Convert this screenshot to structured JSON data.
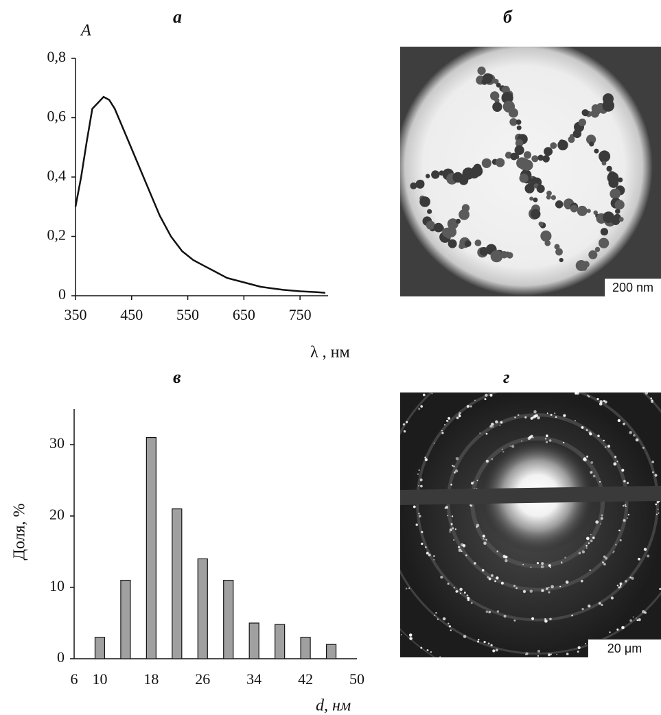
{
  "figure": {
    "panels": {
      "a": {
        "letter": "а"
      },
      "b": {
        "letter": "б",
        "scale_bar": "200 nm"
      },
      "c": {
        "letter": "в"
      },
      "d": {
        "letter": "г",
        "scale_bar": "20 μm"
      }
    }
  },
  "chart_data": [
    {
      "type": "line",
      "panel": "а",
      "xlabel": "λ , нм",
      "ylabel": "A",
      "xlim": [
        350,
        800
      ],
      "ylim": [
        0,
        0.8
      ],
      "x_ticks": [
        "350",
        "450",
        "550",
        "650",
        "750"
      ],
      "y_ticks": [
        "0",
        "0,2",
        "0,4",
        "0,6",
        "0,8"
      ],
      "grid": false,
      "series": [
        {
          "x": [
            350,
            360,
            370,
            380,
            390,
            400,
            410,
            420,
            440,
            460,
            480,
            500,
            520,
            540,
            560,
            580,
            600,
            620,
            650,
            680,
            700,
            720,
            750,
            780,
            795
          ],
          "y": [
            0.3,
            0.4,
            0.52,
            0.63,
            0.65,
            0.67,
            0.66,
            0.63,
            0.54,
            0.45,
            0.36,
            0.27,
            0.2,
            0.15,
            0.12,
            0.1,
            0.08,
            0.06,
            0.045,
            0.03,
            0.025,
            0.02,
            0.015,
            0.012,
            0.01
          ]
        }
      ]
    },
    {
      "type": "bar",
      "panel": "в",
      "xlabel": "d, нм",
      "ylabel": "Доля, %",
      "xlim": [
        6,
        50
      ],
      "ylim": [
        0,
        35
      ],
      "x_ticks": [
        "6",
        "10",
        "18",
        "26",
        "34",
        "42",
        "50"
      ],
      "y_ticks": [
        "0",
        "10",
        "20",
        "30"
      ],
      "grid": false,
      "bar_color": "#a0a0a0",
      "categories": [
        10,
        14,
        18,
        22,
        26,
        30,
        34,
        38,
        42,
        46
      ],
      "values": [
        3,
        11,
        31,
        21,
        14,
        11,
        5,
        4.8,
        3,
        2
      ]
    }
  ]
}
